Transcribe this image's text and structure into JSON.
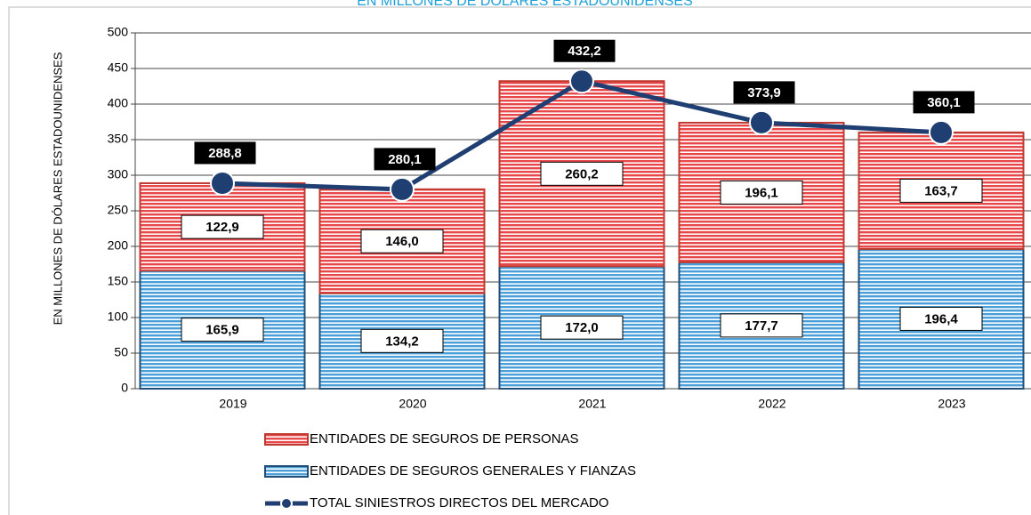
{
  "chart_data": {
    "type": "bar",
    "stacked": true,
    "subtitle": "EN MILLONES DE DÓLARES ESTADOUNIDENSES",
    "y_label": "EN MILLONES DE DÓLARES ESTADOUNIDENSES",
    "categories": [
      "2019",
      "2020",
      "2021",
      "2022",
      "2023"
    ],
    "series": [
      {
        "name": "ENTIDADES DE SEGUROS DE PERSONAS",
        "color": "#e8474a",
        "values": [
          122.9,
          146.0,
          260.2,
          196.1,
          163.7
        ],
        "value_labels": [
          "122,9",
          "146,0",
          "260,2",
          "196,1",
          "163,7"
        ]
      },
      {
        "name": "ENTIDADES DE SEGUROS GENERALES Y FIANZAS",
        "color": "#4a9fd8",
        "values": [
          165.9,
          134.2,
          172.0,
          177.7,
          196.4
        ],
        "value_labels": [
          "165,9",
          "134,2",
          "172,0",
          "177,7",
          "196,4"
        ]
      },
      {
        "name": "TOTAL SINIESTROS DIRECTOS DEL MERCADO",
        "type": "line",
        "color": "#1f3f73",
        "values": [
          288.8,
          280.1,
          432.2,
          373.9,
          360.1
        ],
        "value_labels": [
          "288,8",
          "280,1",
          "432,2",
          "373,9",
          "360,1"
        ]
      }
    ],
    "ylim": [
      0,
      500
    ],
    "yticks": [
      0,
      50,
      100,
      150,
      200,
      250,
      300,
      350,
      400,
      450,
      500
    ],
    "grid": true
  }
}
